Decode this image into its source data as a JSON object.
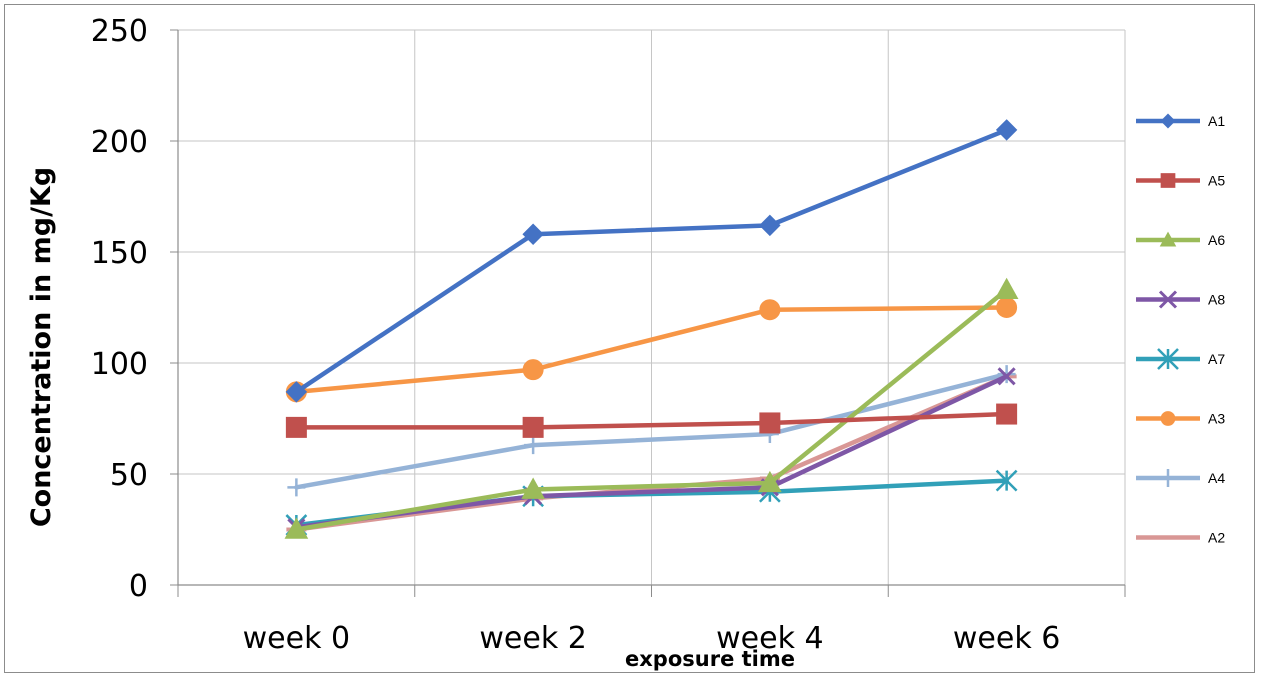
{
  "chart_data": {
    "type": "line",
    "categories": [
      "week 0",
      "week 2",
      "week 4",
      "week 6"
    ],
    "ylabel": "Concentration in mg/Kg",
    "xlabel": "exposure time",
    "ylim": [
      0,
      250
    ],
    "yticks": [
      0,
      50,
      100,
      150,
      200,
      250
    ],
    "grid": true,
    "legend_position": "right",
    "series": [
      {
        "name": "A1",
        "color": "#4472c4",
        "marker": "diamond",
        "values": [
          87,
          158,
          162,
          205
        ]
      },
      {
        "name": "A5",
        "color": "#c0504d",
        "marker": "square",
        "values": [
          71,
          71,
          73,
          77
        ]
      },
      {
        "name": "A6",
        "color": "#9bbb59",
        "marker": "triangle",
        "values": [
          25,
          43,
          46,
          133
        ]
      },
      {
        "name": "A8",
        "color": "#7e57a6",
        "marker": "x",
        "values": [
          26,
          40,
          44,
          94
        ]
      },
      {
        "name": "A7",
        "color": "#31a0b8",
        "marker": "star",
        "values": [
          27,
          40,
          42,
          47
        ]
      },
      {
        "name": "A3",
        "color": "#f79646",
        "marker": "circle",
        "values": [
          87,
          97,
          124,
          125
        ]
      },
      {
        "name": "A4",
        "color": "#95b3d7",
        "marker": "plus",
        "values": [
          44,
          63,
          68,
          95
        ]
      },
      {
        "name": "A2",
        "color": "#d99795",
        "marker": "dash",
        "values": [
          25,
          39,
          48,
          94
        ]
      }
    ]
  }
}
